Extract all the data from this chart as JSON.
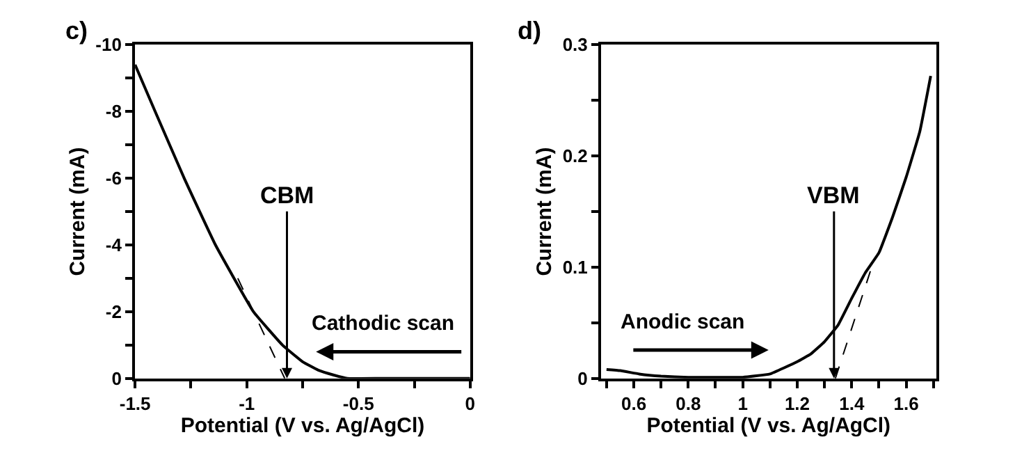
{
  "chart_data": [
    {
      "type": "line",
      "title": "c)",
      "xlabel": "Potential (V vs. Ag/AgCl)",
      "ylabel": "Current (mA)",
      "xlim": [
        -1.5,
        0
      ],
      "ylim": [
        0,
        -10
      ],
      "xticks": [
        -1.5,
        {
          "value": -1.25,
          "label": null
        },
        -1,
        {
          "value": -0.75,
          "label": null
        },
        -0.5,
        {
          "value": -0.25,
          "label": null
        },
        0
      ],
      "yticks": [
        0,
        {
          "value": -1,
          "label": null
        },
        -2,
        {
          "value": -3,
          "label": null
        },
        -4,
        {
          "value": -5,
          "label": null
        },
        -6,
        {
          "value": -7,
          "label": null
        },
        -8,
        {
          "value": -9,
          "label": null
        },
        -10
      ],
      "marker": "none",
      "series": [
        {
          "color": "#000000",
          "line_style": "solid",
          "x": [
            -1.5,
            -1.41,
            -1.28,
            -1.14,
            -0.97,
            -0.84,
            -0.75,
            -0.68,
            -0.61,
            -0.55,
            -0.4,
            -0.2,
            0
          ],
          "values": [
            -9.4,
            -8,
            -6,
            -4,
            -2,
            -1,
            -0.5,
            -0.25,
            -0.1,
            0,
            0,
            0,
            0
          ]
        },
        {
          "color": "#000000",
          "line_style": "dashed",
          "x": [
            -1.04,
            -0.83
          ],
          "values": [
            -3.0,
            0
          ]
        }
      ],
      "annotations": [
        {
          "text": "CBM",
          "x": -0.82,
          "y": 0
        },
        "Cathodic scan"
      ]
    },
    {
      "type": "line",
      "title": "d)",
      "xlabel": "Potential (V vs. Ag/AgCl)",
      "ylabel": "Current (mA)",
      "xlim": [
        0.48,
        1.71
      ],
      "ylim": [
        0,
        0.3
      ],
      "xticks": [
        {
          "value": 0.5,
          "label": null
        },
        0.6,
        {
          "value": 0.7,
          "label": null
        },
        0.8,
        {
          "value": 0.9,
          "label": null
        },
        1,
        {
          "value": 1.1,
          "label": null
        },
        1.2,
        {
          "value": 1.3,
          "label": null
        },
        1.4,
        {
          "value": 1.5,
          "label": null
        },
        1.6,
        {
          "value": 1.7,
          "label": null
        }
      ],
      "yticks": [
        0,
        {
          "value": 0.05,
          "label": null
        },
        0.1,
        {
          "value": 0.15,
          "label": null
        },
        0.2,
        {
          "value": 0.25,
          "label": null
        },
        0.3
      ],
      "marker": "none",
      "series": [
        {
          "color": "#000000",
          "line_style": "solid",
          "x": [
            0.5,
            0.55,
            0.62,
            0.7,
            0.8,
            0.9,
            1.0,
            1.1,
            1.2,
            1.25,
            1.3,
            1.35,
            1.4,
            1.45,
            1.5,
            1.55,
            1.6,
            1.65,
            1.69
          ],
          "values": [
            0.008,
            0.007,
            0.004,
            0.002,
            0.001,
            0.001,
            0.001,
            0.004,
            0.015,
            0.022,
            0.033,
            0.048,
            0.072,
            0.095,
            0.113,
            0.145,
            0.181,
            0.222,
            0.272
          ]
        },
        {
          "color": "#000000",
          "line_style": "dashed",
          "x": [
            1.34,
            1.48
          ],
          "values": [
            0,
            0.105
          ]
        }
      ],
      "annotations": [
        {
          "text": "VBM",
          "x": 1.335,
          "y": 0
        },
        "Anodic scan"
      ]
    }
  ]
}
